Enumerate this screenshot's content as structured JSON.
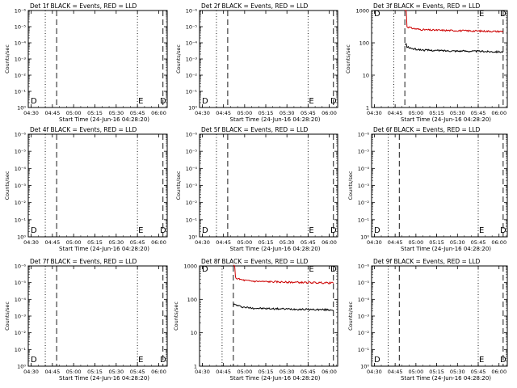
{
  "chart_data": [
    {
      "type": "line",
      "title": "Det 1f BLACK = Events, RED = LLD",
      "xlabel": "Start Time (24-Jun-16 04:28:20)",
      "ylabel": "Counts/sec",
      "x_ticks": [
        "04:30",
        "04:45",
        "05:00",
        "05:15",
        "05:30",
        "05:45",
        "06:00"
      ],
      "y_ticks": [
        "10⁰",
        "10⁻¹",
        "10⁻²",
        "10⁻³",
        "10⁻⁴",
        "10⁻⁵",
        "10⁻⁶"
      ],
      "y_scale": "log",
      "annotations": [
        "D",
        "E",
        "D"
      ],
      "series": []
    },
    {
      "type": "line",
      "title": "Det 2f BLACK = Events, RED = LLD",
      "xlabel": "Start Time (24-Jun-16 04:28:20)",
      "ylabel": "Counts/sec",
      "x_ticks": [
        "04:30",
        "04:45",
        "05:00",
        "05:15",
        "05:30",
        "05:45",
        "06:00"
      ],
      "y_ticks": [
        "10⁰",
        "10⁻¹",
        "10⁻²",
        "10⁻³",
        "10⁻⁴",
        "10⁻⁵",
        "10⁻⁶"
      ],
      "y_scale": "log",
      "annotations": [
        "D",
        "E",
        "D"
      ],
      "series": []
    },
    {
      "type": "line",
      "title": "Det 3f BLACK = Events, RED = LLD",
      "xlabel": "Start Time (24-Jun-16 04:28:20)",
      "ylabel": "Counts/sec",
      "x_ticks": [
        "04:30",
        "04:45",
        "05:00",
        "05:15",
        "05:30",
        "05:45",
        "06:00"
      ],
      "y_ticks": [
        "1",
        "10",
        "100",
        "1000"
      ],
      "y_scale": "log",
      "annotations": [
        "D",
        "E",
        "D"
      ],
      "series": [
        {
          "color": "#cc0000",
          "start": "04:52",
          "end": "06:03",
          "level": 255,
          "spike": 1000
        },
        {
          "color": "#000000",
          "start": "04:52",
          "end": "06:03",
          "level": 60,
          "spike": 90
        }
      ]
    },
    {
      "type": "line",
      "title": "Det 4f BLACK = Events, RED = LLD",
      "xlabel": "Start Time (24-Jun-16 04:28:20)",
      "ylabel": "Counts/sec",
      "x_ticks": [
        "04:30",
        "04:45",
        "05:00",
        "05:15",
        "05:30",
        "05:45",
        "06:00"
      ],
      "y_ticks": [
        "10⁰",
        "10⁻¹",
        "10⁻²",
        "10⁻³",
        "10⁻⁴",
        "10⁻⁵",
        "10⁻⁶"
      ],
      "y_scale": "log",
      "annotations": [
        "D",
        "E",
        "D"
      ],
      "series": []
    },
    {
      "type": "line",
      "title": "Det 5f BLACK = Events, RED = LLD",
      "xlabel": "Start Time (24-Jun-16 04:28:20)",
      "ylabel": "Counts/sec",
      "x_ticks": [
        "04:30",
        "04:45",
        "05:00",
        "05:15",
        "05:30",
        "05:45",
        "06:00"
      ],
      "y_ticks": [
        "10⁰",
        "10⁻¹",
        "10⁻²",
        "10⁻³",
        "10⁻⁴",
        "10⁻⁵",
        "10⁻⁶"
      ],
      "y_scale": "log",
      "annotations": [
        "D",
        "E",
        "D"
      ],
      "series": []
    },
    {
      "type": "line",
      "title": "Det 6f BLACK = Events, RED = LLD",
      "xlabel": "Start Time (24-Jun-16 04:28:20)",
      "ylabel": "Counts/sec",
      "x_ticks": [
        "04:30",
        "04:45",
        "05:00",
        "05:15",
        "05:30",
        "05:45",
        "06:00"
      ],
      "y_ticks": [
        "10⁰",
        "10⁻¹",
        "10⁻²",
        "10⁻³",
        "10⁻⁴",
        "10⁻⁵",
        "10⁻⁶"
      ],
      "y_scale": "log",
      "annotations": [
        "D",
        "E",
        "D"
      ],
      "series": []
    },
    {
      "type": "line",
      "title": "Det 7f BLACK = Events, RED = LLD",
      "xlabel": "Start Time (24-Jun-16 04:28:20)",
      "ylabel": "Counts/sec",
      "x_ticks": [
        "04:30",
        "04:45",
        "05:00",
        "05:15",
        "05:30",
        "05:45",
        "06:00"
      ],
      "y_ticks": [
        "10⁰",
        "10⁻¹",
        "10⁻²",
        "10⁻³",
        "10⁻⁴",
        "10⁻⁵",
        "10⁻⁶"
      ],
      "y_scale": "log",
      "annotations": [
        "D",
        "E",
        "D"
      ],
      "series": []
    },
    {
      "type": "line",
      "title": "Det 8f BLACK = Events, RED = LLD",
      "xlabel": "Start Time (24-Jun-16 04:28:20)",
      "ylabel": "Counts/sec",
      "x_ticks": [
        "04:30",
        "04:45",
        "05:00",
        "05:15",
        "05:30",
        "05:45",
        "06:00"
      ],
      "y_ticks": [
        "1",
        "10",
        "100",
        "1000"
      ],
      "y_scale": "log",
      "annotations": [
        "D",
        "E",
        "D"
      ],
      "series": [
        {
          "color": "#cc0000",
          "start": "04:52",
          "end": "06:03",
          "level": 350,
          "spike": 1000
        },
        {
          "color": "#000000",
          "start": "04:52",
          "end": "06:03",
          "level": 55,
          "spike": 70
        }
      ]
    },
    {
      "type": "line",
      "title": "Det 9f BLACK = Events, RED = LLD",
      "xlabel": "Start Time (24-Jun-16 04:28:20)",
      "ylabel": "Counts/sec",
      "x_ticks": [
        "04:30",
        "04:45",
        "05:00",
        "05:15",
        "05:30",
        "05:45",
        "06:00"
      ],
      "y_ticks": [
        "10⁰",
        "10⁻¹",
        "10⁻²",
        "10⁻³",
        "10⁻⁴",
        "10⁻⁵",
        "10⁻⁶"
      ],
      "y_scale": "log",
      "annotations": [
        "D",
        "E",
        "D"
      ],
      "series": []
    }
  ]
}
